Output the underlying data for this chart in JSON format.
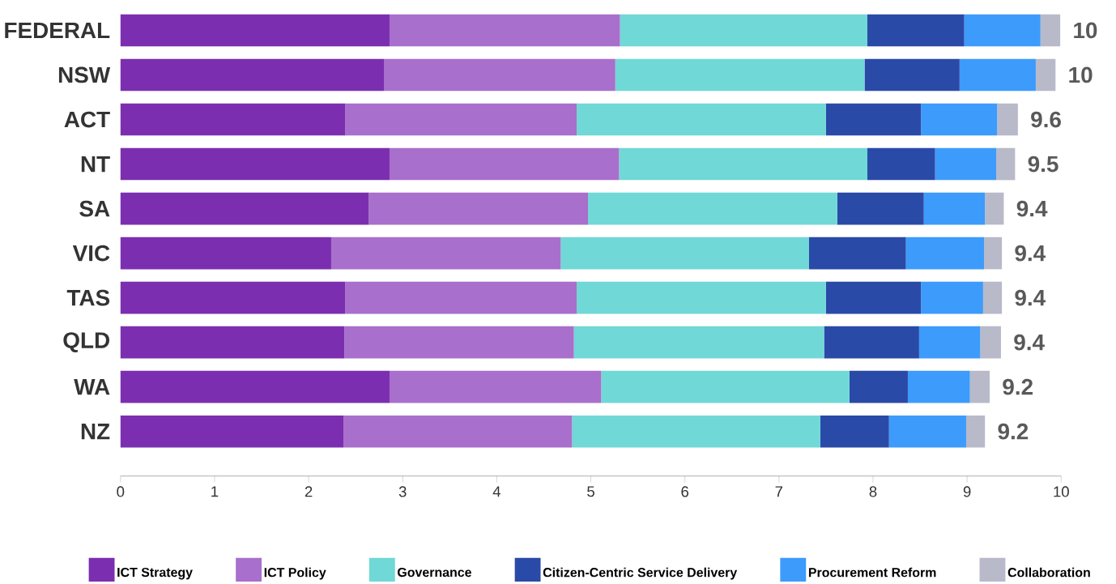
{
  "chart_data": {
    "type": "bar",
    "orientation": "horizontal",
    "stacked": true,
    "legend": "bottom",
    "grid": false,
    "categories": [
      "FEDERAL",
      "NSW",
      "ACT",
      "NT",
      "SA",
      "VIC",
      "TAS",
      "QLD",
      "WA",
      "NZ"
    ],
    "xlim": [
      0,
      10
    ],
    "xticks": [
      0,
      1,
      2,
      3,
      4,
      5,
      6,
      7,
      8,
      9,
      10
    ],
    "series": [
      {
        "name": "ICT Strategy",
        "color": "#7b2fb0",
        "values": [
          2.86,
          2.8,
          2.39,
          2.86,
          2.64,
          2.24,
          2.39,
          2.38,
          2.86,
          2.37
        ]
      },
      {
        "name": "ICT Policy",
        "color": "#a96fcc",
        "values": [
          2.45,
          2.46,
          2.46,
          2.44,
          2.33,
          2.44,
          2.46,
          2.44,
          2.25,
          2.43
        ]
      },
      {
        "name": "Governance",
        "color": "#70d8d6",
        "values": [
          2.63,
          2.65,
          2.65,
          2.64,
          2.65,
          2.64,
          2.65,
          2.66,
          2.64,
          2.64
        ]
      },
      {
        "name": "Citizen-Centric Service Delivery",
        "color": "#2a4aa8",
        "values": [
          1.03,
          1.01,
          1.01,
          0.72,
          0.92,
          1.03,
          1.01,
          1.01,
          0.62,
          0.73
        ]
      },
      {
        "name": "Procurement Reform",
        "color": "#3d9bfb",
        "values": [
          0.81,
          0.81,
          0.81,
          0.65,
          0.65,
          0.83,
          0.66,
          0.65,
          0.66,
          0.82
        ]
      },
      {
        "name": "Collaboration",
        "color": "#b8b9c9",
        "values": [
          0.21,
          0.21,
          0.22,
          0.2,
          0.2,
          0.19,
          0.2,
          0.22,
          0.21,
          0.2
        ]
      }
    ],
    "totals": [
      "10",
      "10",
      "9.6",
      "9.5",
      "9.4",
      "9.4",
      "9.4",
      "9.4",
      "9.2",
      "9.2"
    ]
  }
}
